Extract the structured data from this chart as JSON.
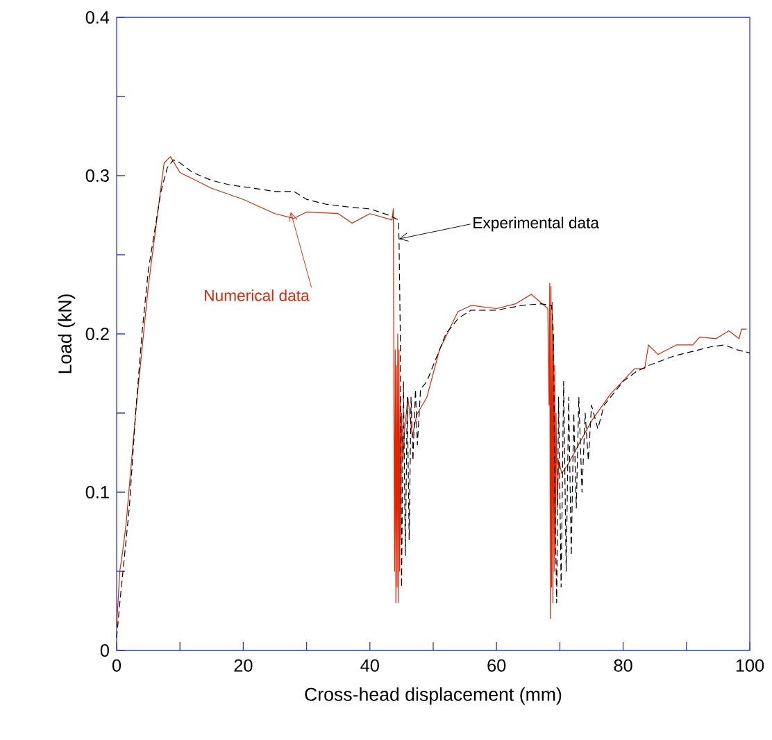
{
  "chart_data": {
    "type": "line",
    "xlabel": "Cross-head displacement (mm)",
    "ylabel": "Load (kN)",
    "xlim": [
      0,
      100
    ],
    "ylim": [
      0,
      0.4
    ],
    "xticks": [
      0,
      {
        "value": 10,
        "label": null
      },
      20,
      {
        "value": 30,
        "label": null
      },
      40,
      {
        "value": 50,
        "label": null
      },
      60,
      {
        "value": 70,
        "label": null
      },
      80,
      {
        "value": 90,
        "label": null
      },
      100
    ],
    "yticks": [
      0,
      {
        "value": 0.05,
        "label": null
      },
      0.1,
      {
        "value": 0.15,
        "label": null
      },
      0.2,
      {
        "value": 0.25,
        "label": null
      },
      0.3,
      {
        "value": 0.35,
        "label": null
      },
      0.4
    ],
    "marker": "none",
    "series": [
      {
        "color": "#e32400",
        "line_style": "solid",
        "x": [
          0,
          0.5,
          0.9,
          1.5,
          3,
          5,
          7.5,
          8.5,
          10,
          12,
          15,
          20,
          25,
          28,
          30,
          35,
          37.2,
          40,
          43.5,
          43.7,
          43.8,
          43.9,
          44.0,
          44.1,
          44.2,
          44.3,
          44.4,
          44.5,
          44.6,
          44.7,
          44.8,
          44.9,
          45.0,
          45.2,
          45.5,
          46,
          46.7,
          47.4,
          49.0,
          51,
          53.9,
          56,
          60,
          63,
          65.5,
          68.1,
          68.3,
          68.4,
          68.5,
          68.6,
          68.7,
          68.8,
          68.9,
          69.0,
          69.1,
          69.2,
          69.3,
          69.4,
          69.6,
          69.8,
          70.3,
          71.2,
          75,
          78,
          81.8,
          83.4,
          84,
          85.5,
          88.4,
          91,
          92.1,
          94.7,
          96.7,
          98.3,
          98.7,
          99.5
        ],
        "values": [
          0.015,
          0.05,
          0.061,
          0.08,
          0.15,
          0.23,
          0.308,
          0.312,
          0.302,
          0.298,
          0.292,
          0.285,
          0.276,
          0.273,
          0.277,
          0.276,
          0.27,
          0.276,
          0.272,
          0.279,
          0.16,
          0.05,
          0.19,
          0.03,
          0.18,
          0.04,
          0.2,
          0.03,
          0.19,
          0.05,
          0.16,
          0.07,
          0.15,
          0.12,
          0.14,
          0.16,
          0.135,
          0.149,
          0.16,
          0.19,
          0.214,
          0.218,
          0.216,
          0.219,
          0.225,
          0.216,
          0.155,
          0.232,
          0.02,
          0.23,
          0.04,
          0.22,
          0.03,
          0.2,
          0.05,
          0.18,
          0.06,
          0.15,
          0.09,
          0.12,
          0.112,
          0.117,
          0.145,
          0.162,
          0.178,
          0.178,
          0.193,
          0.187,
          0.193,
          0.193,
          0.198,
          0.197,
          0.202,
          0.197,
          0.203,
          0.203
        ]
      },
      {
        "color": "#000000",
        "line_style": "dashed",
        "x": [
          0,
          0.5,
          1,
          2,
          3,
          4,
          5,
          6,
          7,
          8,
          9,
          10,
          12,
          15,
          18,
          20,
          25,
          28,
          30,
          33,
          37,
          40,
          43,
          44.5,
          44.6,
          44.8,
          45.0,
          45.3,
          45.6,
          45.9,
          46.2,
          46.5,
          46.8,
          47.2,
          47.5,
          48,
          49,
          50,
          52,
          54,
          56,
          60,
          64,
          67,
          68.7,
          69,
          69.2,
          69.5,
          69.8,
          70.2,
          70.6,
          71.0,
          71.4,
          71.8,
          72.2,
          72.6,
          73,
          73.5,
          74,
          74.5,
          75,
          76,
          77,
          78,
          80,
          82,
          84,
          86,
          88,
          90,
          92,
          94,
          96,
          98,
          100
        ],
        "values": [
          0.008,
          0.03,
          0.05,
          0.09,
          0.15,
          0.2,
          0.24,
          0.265,
          0.29,
          0.305,
          0.31,
          0.308,
          0.302,
          0.297,
          0.294,
          0.293,
          0.29,
          0.29,
          0.285,
          0.282,
          0.28,
          0.279,
          0.275,
          0.272,
          0.26,
          0.2,
          0.04,
          0.17,
          0.06,
          0.16,
          0.07,
          0.16,
          0.12,
          0.165,
          0.13,
          0.165,
          0.17,
          0.18,
          0.2,
          0.21,
          0.215,
          0.215,
          0.218,
          0.219,
          0.218,
          0.2,
          0.1,
          0.03,
          0.16,
          0.04,
          0.17,
          0.05,
          0.16,
          0.06,
          0.15,
          0.09,
          0.16,
          0.1,
          0.15,
          0.12,
          0.155,
          0.14,
          0.155,
          0.16,
          0.17,
          0.176,
          0.18,
          0.183,
          0.186,
          0.188,
          0.19,
          0.192,
          0.193,
          0.19,
          0.188
        ]
      }
    ],
    "annotations": [
      {
        "text": "Numerical data",
        "x": 27.5,
        "y": 0.277
      },
      {
        "text": "Experimental data",
        "x": 44.6,
        "y": 0.26
      }
    ]
  }
}
